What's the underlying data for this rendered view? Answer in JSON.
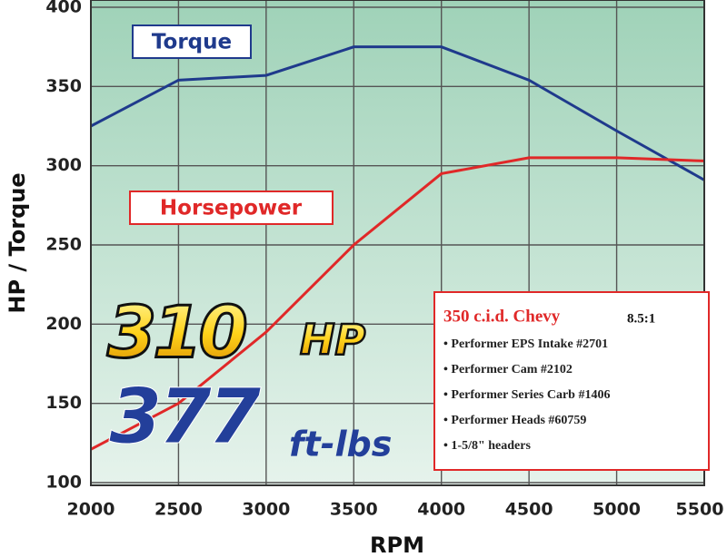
{
  "chart_data": {
    "type": "line",
    "y_label": "HP / Torque",
    "x_label": "RPM",
    "x": [
      2000,
      2500,
      3000,
      3500,
      4000,
      4500,
      5000,
      5500
    ],
    "series": [
      {
        "name": "Torque",
        "color": "#1f3a8c",
        "values": [
          325,
          354,
          357,
          375,
          375,
          354,
          322,
          291
        ]
      },
      {
        "name": "Horsepower",
        "color": "#e02828",
        "values": [
          121,
          150,
          195,
          250,
          295,
          305,
          305,
          303
        ]
      }
    ],
    "xlim": [
      2000,
      5500
    ],
    "xticks": [
      2000,
      2500,
      3000,
      3500,
      4000,
      4500,
      5000,
      5500
    ],
    "ylim": [
      100,
      400
    ],
    "yticks": [
      100,
      150,
      200,
      250,
      300,
      350,
      400
    ],
    "grid": true,
    "headline": {
      "hp": "310",
      "hp_unit": "HP",
      "torque": "377",
      "torque_unit": "ft-lbs"
    },
    "spec_box": {
      "title": "350 c.i.d. Chevy",
      "ratio": "8.5:1",
      "items": [
        "• Performer EPS Intake #2701",
        "• Performer Cam #2102",
        "• Performer Series Carb #1406",
        "• Performer Heads #60759",
        "• 1-5/8\" headers"
      ]
    }
  }
}
